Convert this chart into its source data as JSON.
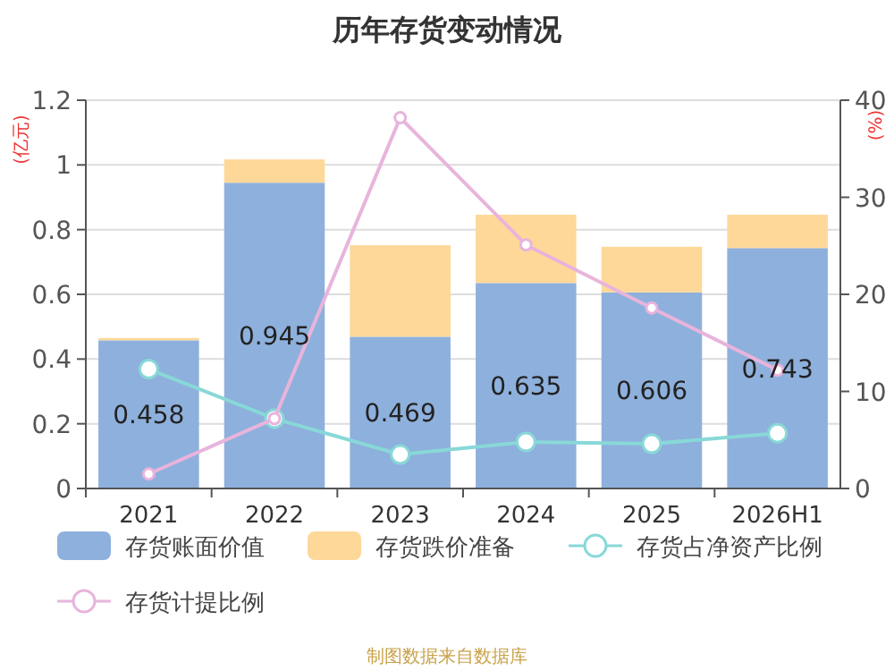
{
  "chart_data": {
    "type": "bar",
    "title": "历年存货变动情况",
    "ylabel": "(亿元)",
    "y2label": "(%)",
    "categories": [
      "2021",
      "2022",
      "2023",
      "2024",
      "2025",
      "2026H1"
    ],
    "stacked": true,
    "series": [
      {
        "name": "存货账面价值",
        "color": "#8eb0dc",
        "values": [
          0.458,
          0.945,
          0.469,
          0.635,
          0.606,
          0.743
        ],
        "value_labels": [
          "0.458",
          "0.945",
          "0.469",
          "0.635",
          "0.606",
          "0.743"
        ]
      },
      {
        "name": "存货跌价准备",
        "color": "#fdd899",
        "values": [
          0.007,
          0.072,
          0.283,
          0.211,
          0.141,
          0.103
        ]
      },
      {
        "name": "存货占净资产比例",
        "type": "line",
        "axis": "y2",
        "color": "#88d8d8",
        "marker": "circle",
        "values": [
          12.3,
          7.2,
          3.5,
          4.8,
          4.6,
          5.7
        ]
      },
      {
        "name": "存货计提比例",
        "type": "line",
        "axis": "y2",
        "color": "#e8b4dc",
        "marker": "circle",
        "values": [
          1.5,
          7.2,
          38.2,
          25.1,
          18.6,
          12.2
        ]
      }
    ],
    "ylim": [
      0,
      1.2
    ],
    "yticks": [
      0,
      0.2,
      0.4,
      0.6,
      0.8,
      1,
      1.2
    ],
    "y2lim": [
      0,
      40
    ],
    "y2ticks": [
      0,
      10,
      20,
      30,
      40
    ],
    "grid": "y",
    "legend": "bottom",
    "annotations": [
      "制图数据来自数据库"
    ]
  }
}
